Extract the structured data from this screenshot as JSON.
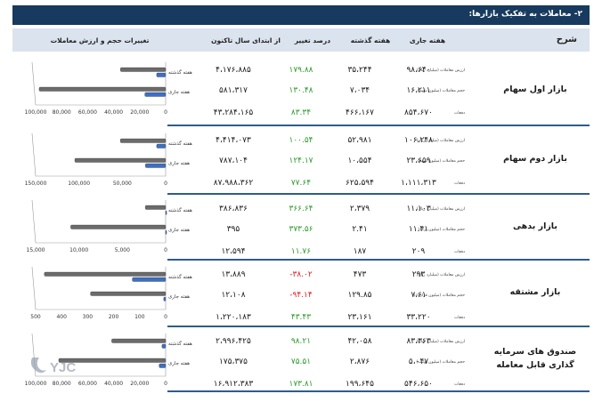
{
  "title": "۲- معاملات به تفکیک بازارها:",
  "header": {
    "sharh": "شرح",
    "this_week": "هفته جاری",
    "last_week": "هفته گذشته",
    "pct_change": "درصد تغییر",
    "ytd": "از ابتدای سال تاکنون",
    "chart_title": "تغییرات حجم و ارزش معاملات"
  },
  "row_labels": {
    "value": "ارزش معاملات (میلیارد ریال)",
    "volume_shares": "حجم معاملات (میلیون سهم)",
    "volume_bonds": "حجم معاملات (میلیون برگه)",
    "volume_contracts": "حجم معاملات (میلیون قرارداد)",
    "volume_units": "حجم معاملات (میلیون یونیت)",
    "count": "دفعات"
  },
  "sections": [
    {
      "name": "بازار اول سهام",
      "rows": [
        {
          "label": "ارزش معاملات (میلیارد ریال)",
          "this_week": "۹۸،۶۴۰",
          "last_week": "۳۵،۲۴۴",
          "pct": "۱۷۹.۸۸",
          "ytd": "۴،۱۷۶،۸۸۵"
        },
        {
          "label": "حجم معاملات (میلیون سهم)",
          "this_week": "۱۶،۲۱۱",
          "last_week": "۷،۰۳۴",
          "pct": "۱۳۰.۴۸",
          "ytd": "۵۸۱،۳۱۷"
        },
        {
          "label": "دفعات",
          "this_week": "۸۵۴،۶۷۰",
          "last_week": "۴۶۶،۱۶۷",
          "pct": "۸۳.۳۴",
          "ytd": "۴۳،۲۸۴،۱۶۵"
        }
      ]
    },
    {
      "name": "بازار دوم سهام",
      "rows": [
        {
          "label": "ارزش معاملات (میلیارد ریال)",
          "this_week": "۱۰۶،۲۴۸",
          "last_week": "۵۲،۹۸۱",
          "pct": "۱۰۰.۵۴",
          "ytd": "۴،۴۱۴،۰۷۳"
        },
        {
          "label": "حجم معاملات (میلیون سهم)",
          "this_week": "۲۳،۶۵۹",
          "last_week": "۱۰،۵۵۴",
          "pct": "۱۲۴.۱۷",
          "ytd": "۷۸۷،۱۰۴"
        },
        {
          "label": "دفعات",
          "this_week": "۱،۱۱۱،۳۱۳",
          "last_week": "۶۲۵،۵۹۴",
          "pct": "۷۷.۶۴",
          "ytd": "۸۷،۹۸۸،۳۶۲"
        }
      ]
    },
    {
      "name": "بازار بدهی",
      "rows": [
        {
          "label": "ارزش معاملات (میلیارد ریال)",
          "this_week": "۱۱،۱۰۳",
          "last_week": "۲،۳۷۹",
          "pct": "۳۶۶.۶۴",
          "ytd": "۳۸۶،۸۳۶"
        },
        {
          "label": "حجم معاملات (میلیون برگه)",
          "this_week": "۱۱.۴۱",
          "last_week": "۲.۴۱",
          "pct": "۳۷۳.۵۶",
          "ytd": "۳۹۵"
        },
        {
          "label": "دفعات",
          "this_week": "۲۰۹",
          "last_week": "۱۸۷",
          "pct": "۱۱.۷۶",
          "ytd": "۱۲،۵۹۴"
        }
      ]
    },
    {
      "name": "بازار مشتقه",
      "rows": [
        {
          "label": "ارزش معاملات (میلیارد ریال)",
          "this_week": "۲۹۳",
          "last_week": "۴۷۳",
          "pct": "-۳۸.۰۲",
          "ytd": "۱۳،۸۸۹"
        },
        {
          "label": "حجم معاملات (میلیون قرارداد)",
          "this_week": "۷.۶۱",
          "last_week": "۱۲۹.۸۵",
          "pct": "-۹۴.۱۴",
          "ytd": "۱۲،۱۰۸"
        },
        {
          "label": "دفعات",
          "this_week": "۳۳،۲۲۰",
          "last_week": "۲۳،۱۶۱",
          "pct": "۴۳.۴۳",
          "ytd": "۱،۲۲۰،۱۸۳"
        }
      ]
    },
    {
      "name": "صندوق های سرمایه گذاری قابل معامله",
      "rows": [
        {
          "label": "ارزش معاملات (میلیارد ریال)",
          "this_week": "۸۳،۳۶۳",
          "last_week": "۴۲،۰۵۸",
          "pct": "۹۸.۲۱",
          "ytd": "۲،۹۹۶،۴۲۵"
        },
        {
          "label": "حجم معاملات (میلیون یونیت)",
          "this_week": "۵،۰۴۷",
          "last_week": "۲،۸۷۶",
          "pct": "۷۵.۵۱",
          "ytd": "۱۷۵،۳۷۵"
        },
        {
          "label": "دفعات",
          "this_week": "۵۴۶،۶۵۰",
          "last_week": "۱۹۹،۶۴۵",
          "pct": "۱۷۳.۸۱",
          "ytd": "۱۶،۹۱۲،۳۸۳"
        }
      ]
    }
  ],
  "chart_data": [
    {
      "type": "bar",
      "categories": [
        "هفته گذشته",
        "هفته جاری"
      ],
      "series": [
        {
          "values": [
            35244,
            98640
          ]
        },
        {
          "values": [
            7034,
            16211
          ]
        }
      ],
      "ticks": [
        "100,000",
        "80,000",
        "60,000",
        "40,000",
        "20,000",
        "0"
      ],
      "xlim": [
        0,
        100000
      ]
    },
    {
      "type": "bar",
      "categories": [
        "هفته گذشته",
        "هفته جاری"
      ],
      "series": [
        {
          "values": [
            52981,
            106248
          ]
        },
        {
          "values": [
            10554,
            23659
          ]
        }
      ],
      "ticks": [
        "150,000",
        "100,000",
        "50,000",
        "0"
      ],
      "xlim": [
        0,
        150000
      ]
    },
    {
      "type": "bar",
      "categories": [
        "هفته گذشته",
        "هفته جاری"
      ],
      "series": [
        {
          "values": [
            2379,
            11103
          ]
        },
        {
          "values": [
            2.41,
            11.41
          ]
        }
      ],
      "ticks": [
        "15,000",
        "10,000",
        "5,000",
        "0"
      ],
      "xlim": [
        0,
        15000
      ]
    },
    {
      "type": "bar",
      "categories": [
        "هفته گذشته",
        "هفته جاری"
      ],
      "series": [
        {
          "values": [
            473,
            293
          ]
        },
        {
          "values": [
            129.85,
            7.61
          ]
        }
      ],
      "ticks": [
        "500",
        "400",
        "300",
        "200",
        "100",
        "0"
      ],
      "xlim": [
        0,
        500
      ]
    },
    {
      "type": "bar",
      "categories": [
        "هفته گذشته",
        "هفته جاری"
      ],
      "series": [
        {
          "values": [
            42058,
            83363
          ]
        },
        {
          "values": [
            2876,
            5047
          ]
        }
      ],
      "ticks": [
        "100,000",
        "80,000",
        "60,000",
        "40,000",
        "20,000",
        "0"
      ],
      "xlim": [
        0,
        100000
      ]
    }
  ],
  "colors": {
    "header_bg": "#173a5e",
    "blue_bar": "#3d6fc4",
    "gray_bar": "#6b6b6b",
    "green": "#2b9a2b",
    "red": "#e02020"
  },
  "logo_text": "YJC"
}
